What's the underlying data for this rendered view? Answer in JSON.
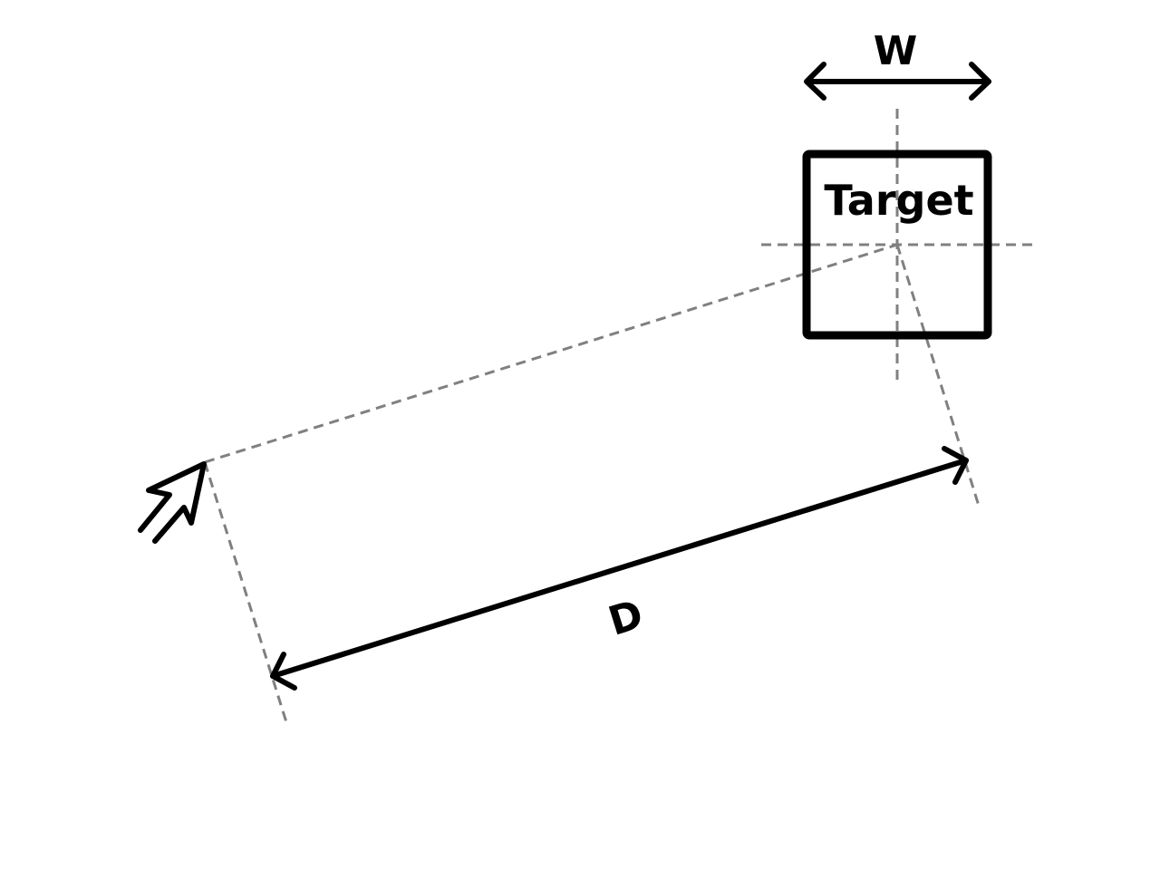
{
  "labels": {
    "width": "W",
    "target": "Target",
    "distance": "D"
  },
  "colors": {
    "stroke": "#000000",
    "guides": "#808080",
    "background": "#ffffff"
  },
  "icons": {
    "cursor": "mouse-pointer-arrow-icon"
  }
}
